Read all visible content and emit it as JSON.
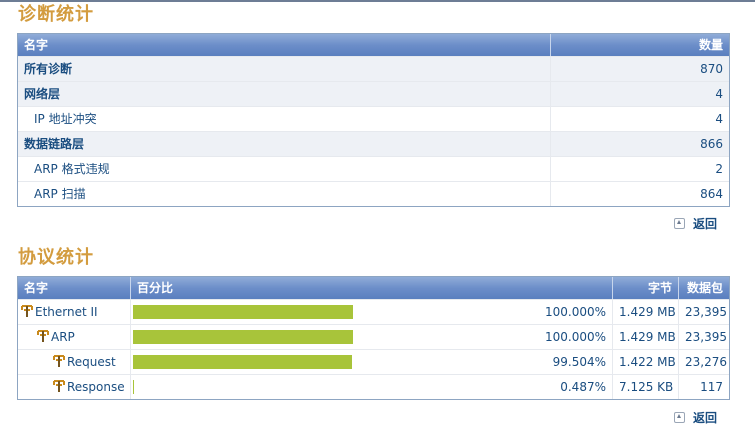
{
  "diagnostics": {
    "title": "诊断统计",
    "headers": {
      "name": "名字",
      "count": "数量"
    },
    "rows": [
      {
        "name": "所有诊断",
        "count": "870",
        "bold": true,
        "indent": 0,
        "band": true
      },
      {
        "name": "网络层",
        "count": "4",
        "bold": true,
        "indent": 0,
        "band": true
      },
      {
        "name": "IP 地址冲突",
        "count": "4",
        "bold": false,
        "indent": 1,
        "band": false
      },
      {
        "name": "数据链路层",
        "count": "866",
        "bold": true,
        "indent": 0,
        "band": true
      },
      {
        "name": "ARP 格式违规",
        "count": "2",
        "bold": false,
        "indent": 1,
        "band": false
      },
      {
        "name": "ARP 扫描",
        "count": "864",
        "bold": false,
        "indent": 1,
        "band": false
      }
    ],
    "back_label": "返回"
  },
  "protocols": {
    "title": "协议统计",
    "headers": {
      "name": "名字",
      "percent": "百分比",
      "bytes": "字节",
      "packets": "数据包"
    },
    "rows": [
      {
        "name": "Ethernet II",
        "percent": "100.000%",
        "fraction": 1.0,
        "bytes": "1.429 MB",
        "packets": "23,395",
        "indent": 0
      },
      {
        "name": "ARP",
        "percent": "100.000%",
        "fraction": 1.0,
        "bytes": "1.429 MB",
        "packets": "23,395",
        "indent": 1
      },
      {
        "name": "Request",
        "percent": "99.504%",
        "fraction": 0.99504,
        "bytes": "1.422 MB",
        "packets": "23,276",
        "indent": 2
      },
      {
        "name": "Response",
        "percent": "0.487%",
        "fraction": 0.00487,
        "bytes": "7.125 KB",
        "packets": "117",
        "indent": 2
      }
    ],
    "back_label": "返回"
  },
  "colors": {
    "bar": "#a8c43a",
    "title": "#d39c3f",
    "link": "#1a4d80"
  }
}
